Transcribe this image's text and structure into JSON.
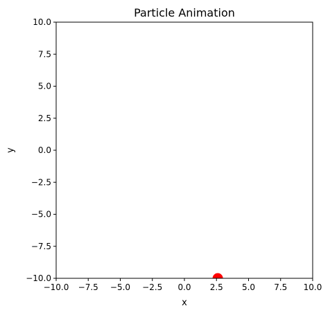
{
  "chart_data": {
    "type": "scatter",
    "title": "Particle Animation",
    "xlabel": "x",
    "ylabel": "y",
    "xlim": [
      -10,
      10
    ],
    "ylim": [
      -10,
      10
    ],
    "xticks": [
      -10,
      -7.5,
      -5,
      -2.5,
      0,
      2.5,
      5,
      7.5,
      10
    ],
    "yticks": [
      -10,
      -7.5,
      -5,
      -2.5,
      0,
      2.5,
      5,
      7.5,
      10
    ],
    "xtick_labels": [
      "−10.0",
      "−7.5",
      "−5.0",
      "−2.5",
      "0.0",
      "2.5",
      "5.0",
      "7.5",
      "10.0"
    ],
    "ytick_labels": [
      "−10.0",
      "−7.5",
      "−5.0",
      "−2.5",
      "0.0",
      "2.5",
      "5.0",
      "7.5",
      "10.0"
    ],
    "grid": false,
    "series": [
      {
        "points": [
          {
            "x": 2.6,
            "y": -10.0
          }
        ],
        "color": "#ff0000"
      }
    ]
  }
}
